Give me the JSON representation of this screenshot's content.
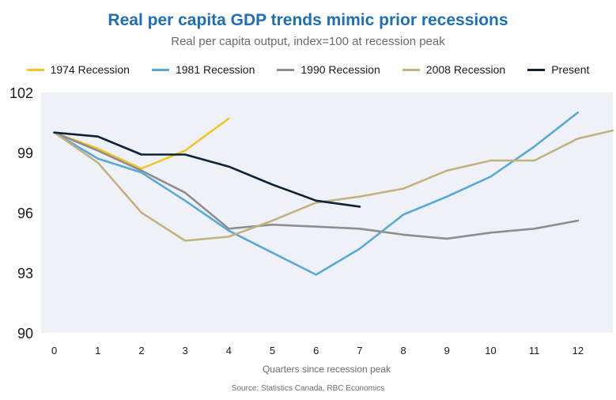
{
  "chart_data": {
    "type": "line",
    "title": "Real per capita GDP trends mimic prior recessions",
    "subtitle": "Real per capita output, index=100 at recession peak",
    "xlabel": "Quarters since recession peak",
    "ylabel": "",
    "source": "Source: Statistics Canada, RBC Economics",
    "x_ticks": [
      "0",
      "1",
      "2",
      "3",
      "4",
      "5",
      "6",
      "7",
      "8",
      "9",
      "10",
      "11",
      "12"
    ],
    "y_ticks": [
      "102",
      "99",
      "96",
      "93",
      "90"
    ],
    "y_tick_values": [
      102,
      99,
      96,
      93,
      90
    ],
    "xlim": [
      -0.3,
      12.8
    ],
    "ylim": [
      90,
      102
    ],
    "grid": false,
    "legend_position": "top",
    "series": [
      {
        "name": "1974 Recession",
        "color": "#f2c52a",
        "x": [
          0,
          1,
          2,
          3,
          4
        ],
        "y": [
          100.0,
          99.2,
          98.2,
          99.1,
          100.7
        ]
      },
      {
        "name": "1981 Recession",
        "color": "#5aa8d6",
        "x": [
          0,
          1,
          2,
          3,
          4,
          5,
          6,
          7,
          8,
          9,
          10,
          11,
          12
        ],
        "y": [
          100.0,
          98.7,
          98.0,
          96.6,
          95.1,
          94.0,
          92.9,
          94.2,
          95.9,
          96.8,
          97.8,
          99.3,
          101.0
        ]
      },
      {
        "name": "1990 Recession",
        "color": "#8e8e8e",
        "x": [
          0,
          1,
          2,
          3,
          4,
          5,
          6,
          7,
          8,
          9,
          10,
          11,
          12
        ],
        "y": [
          100.0,
          99.1,
          98.1,
          97.0,
          95.2,
          95.4,
          95.3,
          95.2,
          94.9,
          94.7,
          95.0,
          95.2,
          95.6
        ]
      },
      {
        "name": "2008 Recession",
        "color": "#c2b27e",
        "x": [
          0,
          1,
          2,
          3,
          4,
          5,
          6,
          7,
          8,
          9,
          10,
          11,
          12,
          12.8
        ],
        "y": [
          100.0,
          98.5,
          96.0,
          94.6,
          94.8,
          95.6,
          96.5,
          96.8,
          97.2,
          98.1,
          98.6,
          98.6,
          99.7,
          100.1
        ]
      },
      {
        "name": "Present",
        "color": "#0d2238",
        "x": [
          0,
          1,
          2,
          3,
          4,
          5,
          6,
          7
        ],
        "y": [
          100.0,
          99.8,
          98.9,
          98.9,
          98.3,
          97.4,
          96.6,
          96.3
        ]
      }
    ]
  }
}
